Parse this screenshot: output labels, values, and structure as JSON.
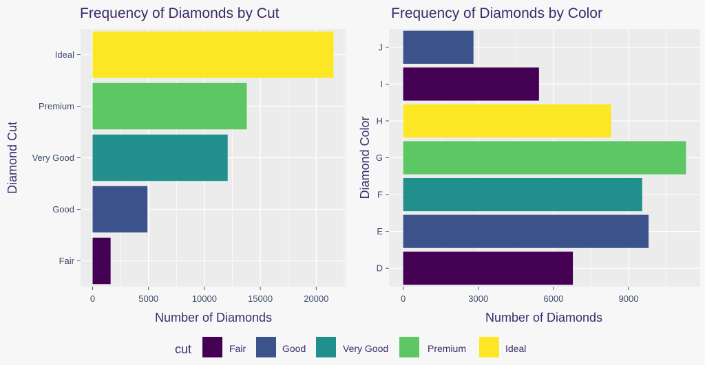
{
  "chart_data": [
    {
      "type": "bar",
      "orientation": "horizontal",
      "title": "Frequency of Diamonds by Cut",
      "xlabel": "Number of Diamonds",
      "ylabel": "Diamond Cut",
      "categories": [
        "Fair",
        "Good",
        "Very Good",
        "Premium",
        "Ideal"
      ],
      "values": [
        1610,
        4906,
        12082,
        13791,
        21551
      ],
      "colors": [
        "#440154",
        "#3B528B",
        "#21908C",
        "#5DC863",
        "#FDE725"
      ],
      "xlim": [
        -1078,
        22629
      ],
      "xticks": [
        0,
        5000,
        10000,
        15000,
        20000
      ],
      "grid": true
    },
    {
      "type": "bar",
      "orientation": "horizontal",
      "title": "Frequency of Diamonds by Color",
      "xlabel": "Number of Diamonds",
      "ylabel": "Diamond Color",
      "categories": [
        "D",
        "E",
        "F",
        "G",
        "H",
        "I",
        "J"
      ],
      "values": [
        6775,
        9797,
        9542,
        11292,
        8304,
        5422,
        2808
      ],
      "colors": [
        "#440154",
        "#3B528B",
        "#21908C",
        "#5DC863",
        "#FDE725"
      ],
      "xlim": [
        -565,
        11857
      ],
      "xticks": [
        0,
        3000,
        6000,
        9000
      ],
      "grid": true
    }
  ],
  "legend": {
    "title": "cut",
    "position": "bottom",
    "entries": [
      {
        "label": "Fair",
        "color": "#440154"
      },
      {
        "label": "Good",
        "color": "#3B528B"
      },
      {
        "label": "Very Good",
        "color": "#21908C"
      },
      {
        "label": "Premium",
        "color": "#5DC863"
      },
      {
        "label": "Ideal",
        "color": "#FDE725"
      }
    ]
  }
}
